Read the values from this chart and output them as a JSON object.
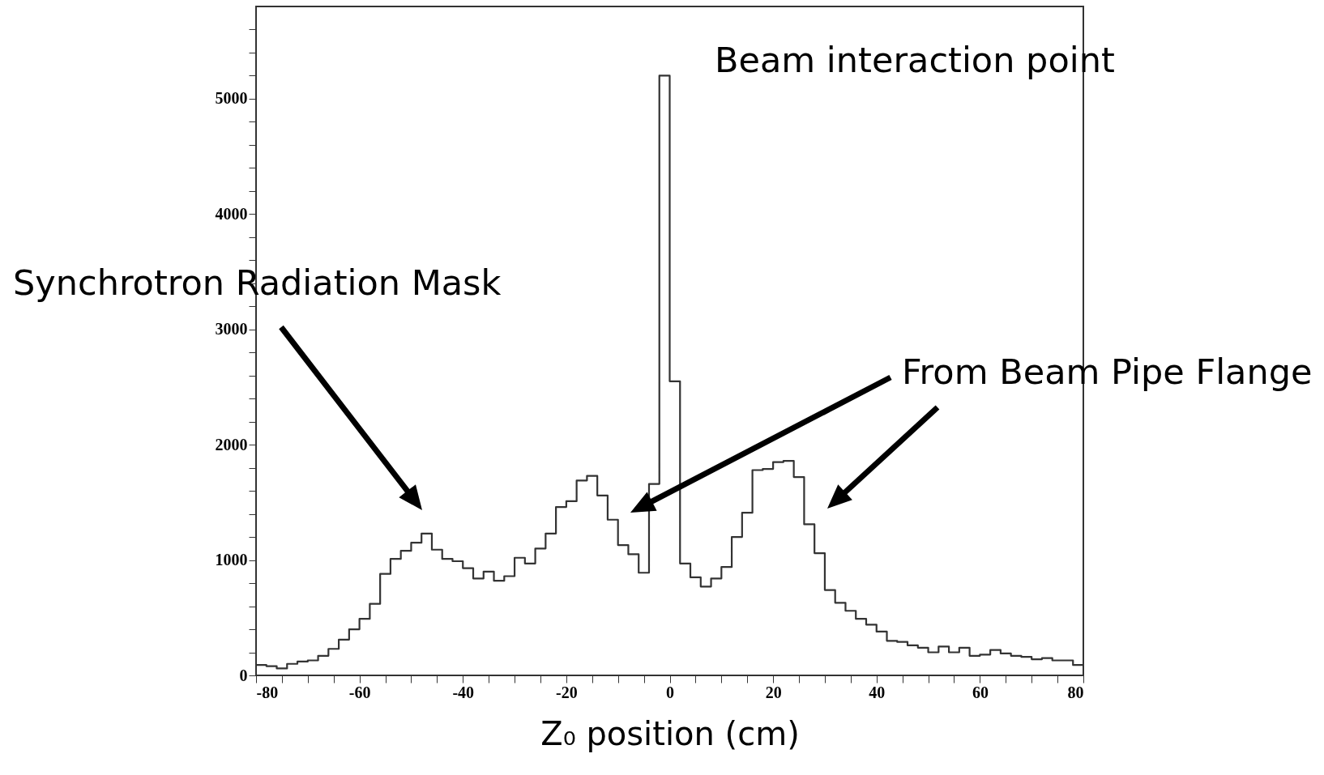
{
  "chart_data": {
    "type": "histogram",
    "xlabel": "Z₀ position (cm)",
    "color": "#333333",
    "bins": [
      -80,
      -78,
      -76,
      -74,
      -72,
      -70,
      -68,
      -66,
      -64,
      -62,
      -60,
      -58,
      -56,
      -54,
      -52,
      -50,
      -48,
      -46,
      -44,
      -42,
      -40,
      -38,
      -36,
      -34,
      -32,
      -30,
      -28,
      -26,
      -24,
      -22,
      -20,
      -18,
      -16,
      -14,
      -12,
      -10,
      -8,
      -6,
      -4,
      -2,
      0,
      2,
      4,
      6,
      8,
      10,
      12,
      14,
      16,
      18,
      20,
      22,
      24,
      26,
      28,
      30,
      32,
      34,
      36,
      38,
      40,
      42,
      44,
      46,
      48,
      50,
      52,
      54,
      56,
      58,
      60,
      62,
      64,
      66,
      68,
      70,
      72,
      74,
      76,
      78,
      80
    ],
    "values": [
      90,
      80,
      60,
      100,
      120,
      130,
      170,
      230,
      310,
      400,
      490,
      620,
      880,
      1010,
      1080,
      1150,
      1230,
      1090,
      1010,
      990,
      930,
      840,
      900,
      820,
      860,
      1020,
      970,
      1100,
      1230,
      1460,
      1510,
      1690,
      1730,
      1560,
      1350,
      1130,
      1050,
      890,
      1660,
      5200,
      2550,
      970,
      850,
      770,
      840,
      940,
      1200,
      1410,
      1780,
      1790,
      1850,
      1860,
      1720,
      1310,
      1060,
      740,
      630,
      560,
      490,
      440,
      380,
      300,
      290,
      260,
      240,
      200,
      250,
      200,
      240,
      170,
      180,
      220,
      190,
      170,
      160,
      140,
      150,
      130,
      130,
      90
    ],
    "xlim": [
      -80,
      80
    ],
    "ylim": [
      0,
      5800
    ],
    "xticks": [
      -80,
      {
        "value": -75,
        "label": null
      },
      {
        "value": -70,
        "label": null
      },
      {
        "value": -65,
        "label": null
      },
      -60,
      {
        "value": -55,
        "label": null
      },
      {
        "value": -50,
        "label": null
      },
      {
        "value": -45,
        "label": null
      },
      -40,
      {
        "value": -35,
        "label": null
      },
      {
        "value": -30,
        "label": null
      },
      {
        "value": -25,
        "label": null
      },
      -20,
      {
        "value": -15,
        "label": null
      },
      {
        "value": -10,
        "label": null
      },
      {
        "value": -5,
        "label": null
      },
      0,
      {
        "value": 5,
        "label": null
      },
      {
        "value": 10,
        "label": null
      },
      {
        "value": 15,
        "label": null
      },
      20,
      {
        "value": 25,
        "label": null
      },
      {
        "value": 30,
        "label": null
      },
      {
        "value": 35,
        "label": null
      },
      40,
      {
        "value": 45,
        "label": null
      },
      {
        "value": 50,
        "label": null
      },
      {
        "value": 55,
        "label": null
      },
      60,
      {
        "value": 65,
        "label": null
      },
      {
        "value": 70,
        "label": null
      },
      {
        "value": 75,
        "label": null
      },
      80
    ],
    "yticks": [
      0,
      {
        "value": 200,
        "label": null
      },
      {
        "value": 400,
        "label": null
      },
      {
        "value": 600,
        "label": null
      },
      {
        "value": 800,
        "label": null
      },
      1000,
      {
        "value": 1200,
        "label": null
      },
      {
        "value": 1400,
        "label": null
      },
      {
        "value": 1600,
        "label": null
      },
      {
        "value": 1800,
        "label": null
      },
      2000,
      {
        "value": 2200,
        "label": null
      },
      {
        "value": 2400,
        "label": null
      },
      {
        "value": 2600,
        "label": null
      },
      {
        "value": 2800,
        "label": null
      },
      3000,
      {
        "value": 3200,
        "label": null
      },
      {
        "value": 3400,
        "label": null
      },
      {
        "value": 3600,
        "label": null
      },
      {
        "value": 3800,
        "label": null
      },
      4000,
      {
        "value": 4200,
        "label": null
      },
      {
        "value": 4400,
        "label": null
      },
      {
        "value": 4600,
        "label": null
      },
      {
        "value": 4800,
        "label": null
      },
      5000,
      {
        "value": 5200,
        "label": null
      },
      {
        "value": 5400,
        "label": null
      },
      {
        "value": 5600,
        "label": null
      }
    ],
    "grid": false,
    "annotations": [
      "Beam interaction point",
      "Synchrotron Radiation Mask",
      "From Beam Pipe Flange"
    ]
  }
}
